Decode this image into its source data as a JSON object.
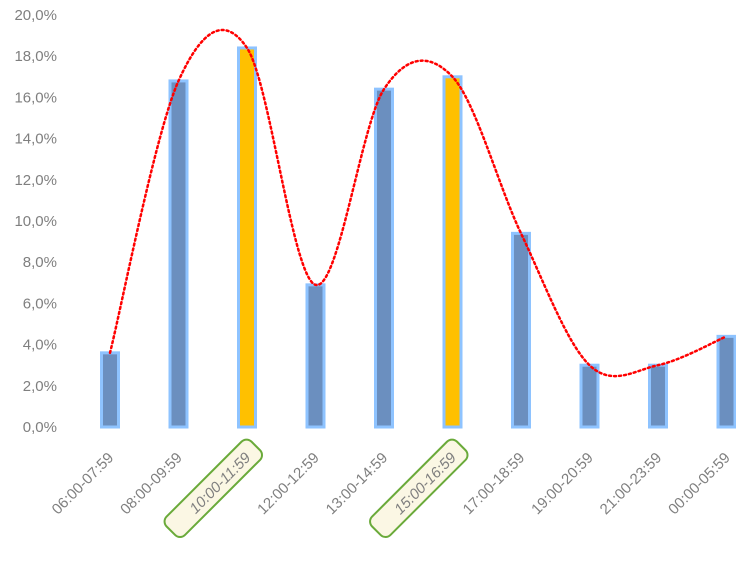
{
  "chart_data": {
    "type": "bar",
    "categories": [
      "06:00-07:59",
      "08:00-09:59",
      "10:00-11:59",
      "12:00-12:59",
      "13:00-14:59",
      "15:00-16:59",
      "17:00-18:59",
      "19:00-20:59",
      "21:00-23:59",
      "00:00-05:59"
    ],
    "values": [
      3.6,
      16.8,
      18.4,
      6.9,
      16.4,
      17.0,
      9.4,
      3.0,
      3.0,
      4.4
    ],
    "highlighted": [
      false,
      false,
      true,
      false,
      false,
      true,
      false,
      false,
      false,
      false
    ],
    "trendline": {
      "type": "polynomial",
      "style": "dotted",
      "color": "#ff0000"
    },
    "y_ticks": [
      "0,0%",
      "2,0%",
      "4,0%",
      "6,0%",
      "8,0%",
      "10,0%",
      "12,0%",
      "14,0%",
      "16,0%",
      "18,0%",
      "20,0%"
    ],
    "ylim": [
      0,
      20
    ],
    "title": "",
    "xlabel": "",
    "ylabel": "",
    "grid": false,
    "colors": {
      "bar": "#6b8fbf",
      "bar_border": "#8ec3ff",
      "highlight_bar": "#ffc000",
      "highlight_border": "#8ec3ff",
      "highlight_label_fill": "#fbf7e4",
      "highlight_label_border": "#6aaa3a",
      "highlight_label_text": "#a6a6a6",
      "tick_text": "#7f7f7f",
      "trendline": "#ff0000"
    }
  }
}
